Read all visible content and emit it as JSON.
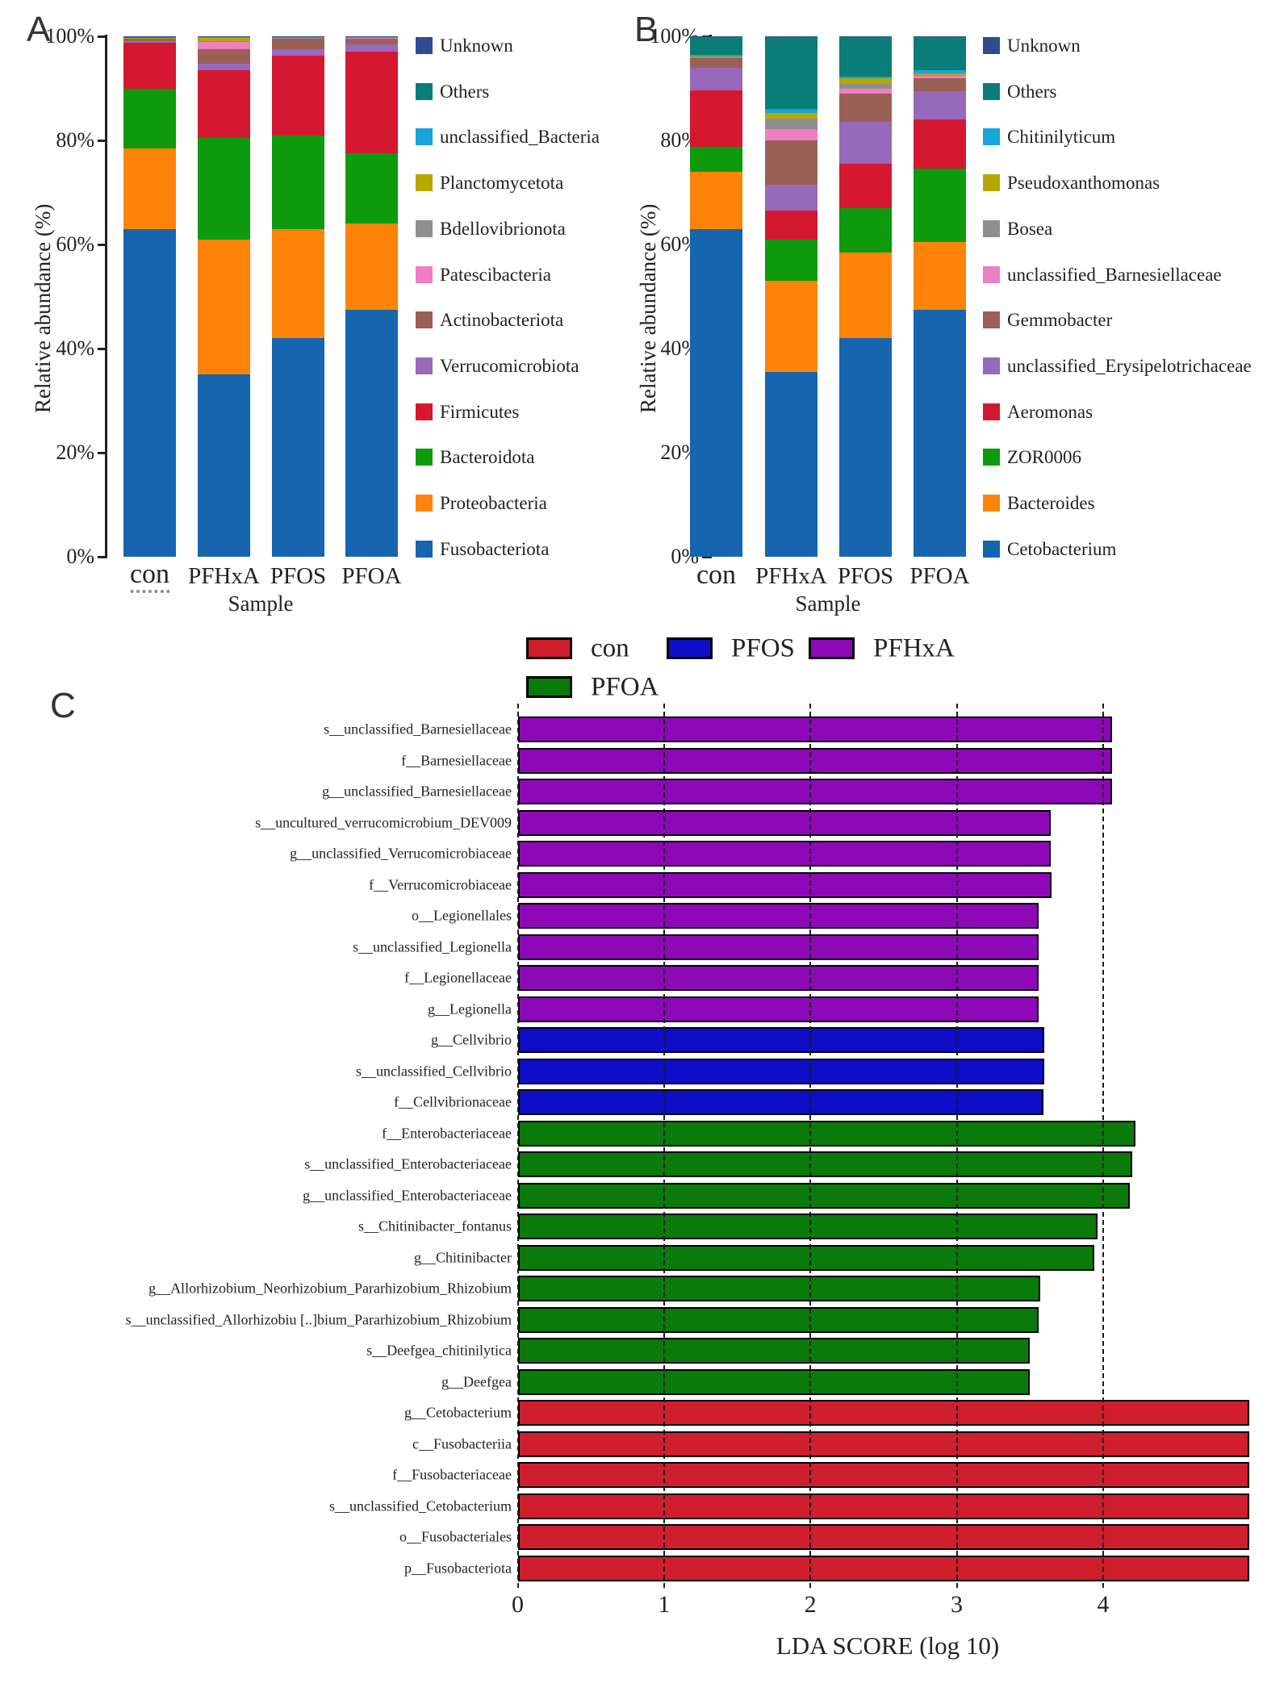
{
  "figure": {
    "description": "Gut microbiota composition and LEfSe analysis figure with three panels",
    "panels": {
      "a_letter": "A",
      "b_letter": "B",
      "c_letter": "C"
    }
  },
  "chart_data": [
    {
      "type": "bar",
      "stacked": true,
      "panel": "A",
      "ylabel": "Relative abundance (%)",
      "xlabel": "Sample",
      "ylim": [
        0,
        100
      ],
      "yticks": [
        "0%",
        "20%",
        "40%",
        "60%",
        "80%",
        "100%"
      ],
      "grid": false,
      "legend_position": "right",
      "categories": [
        "con",
        "PFHxA",
        "PFOS",
        "PFOA"
      ],
      "series": [
        {
          "name": "Fusobacteriota",
          "color": "#1565af",
          "values": [
            63.0,
            35.0,
            42.0,
            47.5
          ]
        },
        {
          "name": "Proteobacteria",
          "color": "#fd8408",
          "values": [
            15.5,
            26.0,
            21.0,
            16.5
          ]
        },
        {
          "name": "Bacteroidota",
          "color": "#0d9b0d",
          "values": [
            11.5,
            19.5,
            18.0,
            13.5
          ]
        },
        {
          "name": "Firmicutes",
          "color": "#d3182f",
          "values": [
            8.7,
            13.0,
            15.3,
            19.5
          ]
        },
        {
          "name": "Verrucomicrobiota",
          "color": "#9769bd",
          "values": [
            0.3,
            1.3,
            1.2,
            1.4
          ]
        },
        {
          "name": "Actinobacteriota",
          "color": "#9b6055",
          "values": [
            0.6,
            2.7,
            2.1,
            1.3
          ]
        },
        {
          "name": "Patescibacteria",
          "color": "#ee7fc3",
          "values": [
            0.05,
            1.5,
            0.1,
            0.05
          ]
        },
        {
          "name": "Bdellovibrionota",
          "color": "#8f8f8f",
          "values": [
            0.05,
            0.1,
            0.05,
            0.05
          ]
        },
        {
          "name": "Planctomycetota",
          "color": "#b6a802",
          "values": [
            0.05,
            0.7,
            0.05,
            0.05
          ]
        },
        {
          "name": "unclassified_Bacteria",
          "color": "#19a4dc",
          "values": [
            0.05,
            0.1,
            0.05,
            0.05
          ]
        },
        {
          "name": "Others",
          "color": "#0b7d78",
          "values": [
            0.1,
            0.05,
            0.1,
            0.1
          ]
        },
        {
          "name": "Unknown",
          "color": "#2e4c8f",
          "values": [
            0.1,
            0.05,
            0.05,
            0.05
          ]
        }
      ]
    },
    {
      "type": "bar",
      "stacked": true,
      "panel": "B",
      "ylabel": "Relative abundance (%)",
      "xlabel": "Sample",
      "ylim": [
        0,
        100
      ],
      "yticks": [
        "0%",
        "20%",
        "40%",
        "60%",
        "80%",
        "100%"
      ],
      "grid": false,
      "legend_position": "right",
      "categories": [
        "con",
        "PFHxA",
        "PFOS",
        "PFOA"
      ],
      "series": [
        {
          "name": "Cetobacterium",
          "color": "#1565af",
          "values": [
            63.0,
            35.5,
            42.0,
            47.5
          ]
        },
        {
          "name": "Bacteroides",
          "color": "#fd8408",
          "values": [
            11.0,
            17.5,
            16.5,
            13.0
          ]
        },
        {
          "name": "ZOR0006",
          "color": "#0d9b0d",
          "values": [
            4.8,
            8.0,
            8.5,
            14.0
          ]
        },
        {
          "name": "Aeromonas",
          "color": "#d3182f",
          "values": [
            10.8,
            5.5,
            8.5,
            9.5
          ]
        },
        {
          "name": "unclassified_Erysipelotrichaceae",
          "color": "#9769bd",
          "values": [
            4.3,
            5.0,
            8.0,
            5.5
          ]
        },
        {
          "name": "Gemmobacter",
          "color": "#9b6055",
          "values": [
            1.9,
            8.5,
            5.5,
            2.5
          ]
        },
        {
          "name": "unclassified_Barnesiellaceae",
          "color": "#ee7fc3",
          "values": [
            0.1,
            2.2,
            1.0,
            0.4
          ]
        },
        {
          "name": "Bosea",
          "color": "#8f8f8f",
          "values": [
            0.1,
            2.0,
            0.9,
            0.1
          ]
        },
        {
          "name": "Pseudoxanthomonas",
          "color": "#b6a802",
          "values": [
            0.1,
            1.1,
            1.0,
            0.4
          ]
        },
        {
          "name": "Chitinilyticum",
          "color": "#19a4dc",
          "values": [
            0.4,
            0.8,
            0.4,
            0.6
          ]
        },
        {
          "name": "Others",
          "color": "#0b7d78",
          "values": [
            3.3,
            13.7,
            7.6,
            6.3
          ]
        },
        {
          "name": "Unknown",
          "color": "#2e4c8f",
          "values": [
            0.2,
            0.2,
            0.1,
            0.2
          ]
        }
      ]
    },
    {
      "type": "bar",
      "orientation": "horizontal",
      "panel": "C",
      "xlabel": "LDA SCORE (log 10)",
      "xlim": [
        0,
        5.05
      ],
      "xticks": [
        "0",
        "1",
        "2",
        "3",
        "4"
      ],
      "grid": "dashed-vertical",
      "legend_position": "top",
      "groups": [
        {
          "label": "con",
          "color": "#cf1e2e"
        },
        {
          "label": "PFOS",
          "color": "#0e0ec8"
        },
        {
          "label": "PFHxA",
          "color": "#8d09b8"
        },
        {
          "label": "PFOA",
          "color": "#0a7a0a"
        }
      ],
      "bars": [
        {
          "label": "s__unclassified_Barnesiellaceae",
          "group": "PFHxA",
          "value": 4.06
        },
        {
          "label": "f__Barnesiellaceae",
          "group": "PFHxA",
          "value": 4.06
        },
        {
          "label": "g__unclassified_Barnesiellaceae",
          "group": "PFHxA",
          "value": 4.06
        },
        {
          "label": "s__uncultured_verrucomicrobium_DEV009",
          "group": "PFHxA",
          "value": 3.64
        },
        {
          "label": "g__unclassified_Verrucomicrobiaceae",
          "group": "PFHxA",
          "value": 3.64
        },
        {
          "label": "f__Verrucomicrobiaceae",
          "group": "PFHxA",
          "value": 3.65
        },
        {
          "label": "o__Legionellales",
          "group": "PFHxA",
          "value": 3.56
        },
        {
          "label": "s__unclassified_Legionella",
          "group": "PFHxA",
          "value": 3.56
        },
        {
          "label": "f__Legionellaceae",
          "group": "PFHxA",
          "value": 3.56
        },
        {
          "label": "g__Legionella",
          "group": "PFHxA",
          "value": 3.56
        },
        {
          "label": "g__Cellvibrio",
          "group": "PFOS",
          "value": 3.6
        },
        {
          "label": "s__unclassified_Cellvibrio",
          "group": "PFOS",
          "value": 3.6
        },
        {
          "label": "f__Cellvibrionaceae",
          "group": "PFOS",
          "value": 3.59
        },
        {
          "label": "f__Enterobacteriaceae",
          "group": "PFOA",
          "value": 4.22
        },
        {
          "label": "s__unclassified_Enterobacteriaceae",
          "group": "PFOA",
          "value": 4.2
        },
        {
          "label": "g__unclassified_Enterobacteriaceae",
          "group": "PFOA",
          "value": 4.18
        },
        {
          "label": "s__Chitinibacter_fontanus",
          "group": "PFOA",
          "value": 3.96
        },
        {
          "label": "g__Chitinibacter",
          "group": "PFOA",
          "value": 3.94
        },
        {
          "label": "g__Allorhizobium_Neorhizobium_Pararhizobium_Rhizobium",
          "group": "PFOA",
          "value": 3.57
        },
        {
          "label": "s__unclassified_Allorhizobiu [..]bium_Pararhizobium_Rhizobium",
          "group": "PFOA",
          "value": 3.56
        },
        {
          "label": "s__Deefgea_chitinilytica",
          "group": "PFOA",
          "value": 3.5
        },
        {
          "label": "g__Deefgea",
          "group": "PFOA",
          "value": 3.5
        },
        {
          "label": "g__Cetobacterium",
          "group": "con",
          "value": 5.0
        },
        {
          "label": "c__Fusobacteriia",
          "group": "con",
          "value": 5.0
        },
        {
          "label": "f__Fusobacteriaceae",
          "group": "con",
          "value": 5.0
        },
        {
          "label": "s__unclassified_Cetobacterium",
          "group": "con",
          "value": 5.0
        },
        {
          "label": "o__Fusobacteriales",
          "group": "con",
          "value": 5.0
        },
        {
          "label": "p__Fusobacteriota",
          "group": "con",
          "value": 5.0
        }
      ]
    }
  ]
}
